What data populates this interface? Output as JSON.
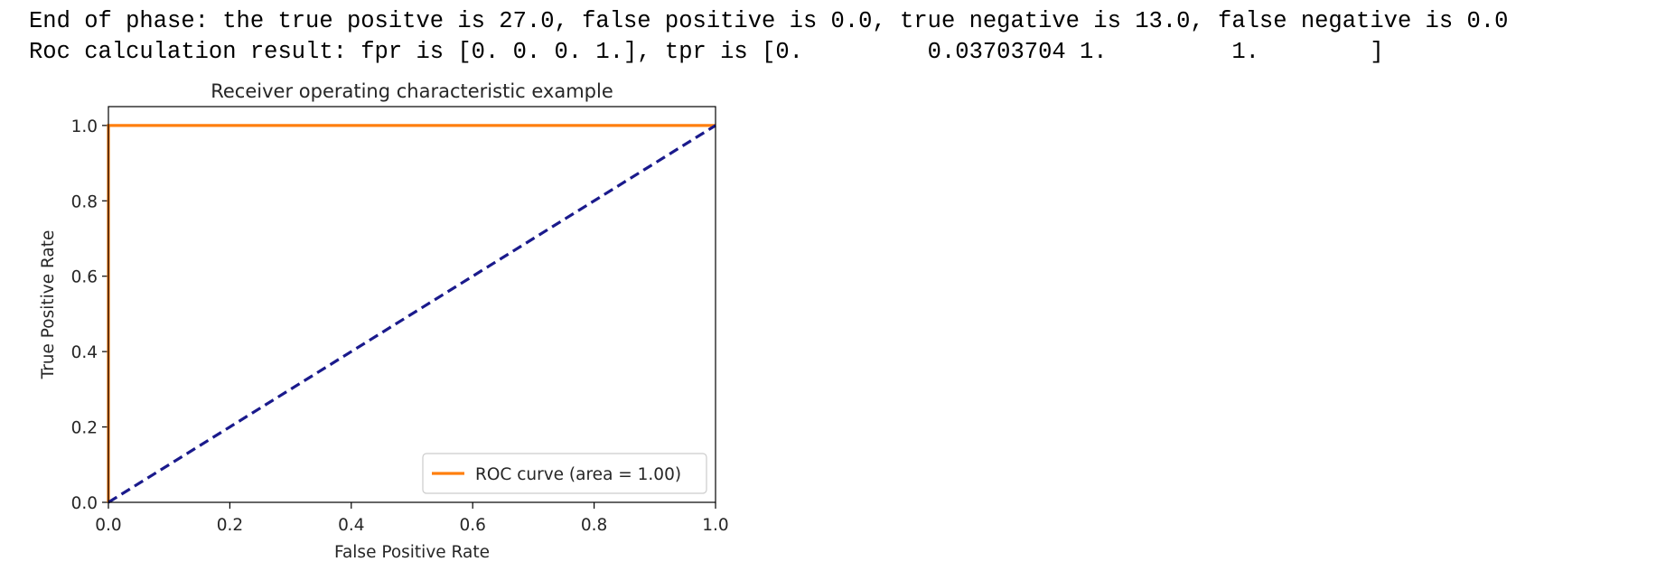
{
  "output": {
    "line1": "End of phase: the true positve is 27.0, false positive is 0.0, true negative is 13.0, false negative is 0.0",
    "line2": "Roc calculation result: fpr is [0. 0. 0. 1.], tpr is [0.         0.03703704 1.         1.        ]"
  },
  "chart_data": {
    "type": "line",
    "title": "Receiver operating characteristic example",
    "xlabel": "False Positive Rate",
    "ylabel": "True Positive Rate",
    "xlim": [
      0.0,
      1.0
    ],
    "ylim": [
      0.0,
      1.05
    ],
    "xticks": [
      0.0,
      0.2,
      0.4,
      0.6,
      0.8,
      1.0
    ],
    "yticks": [
      0.0,
      0.2,
      0.4,
      0.6,
      0.8,
      1.0
    ],
    "xtick_labels": [
      "0.0",
      "0.2",
      "0.4",
      "0.6",
      "0.8",
      "1.0"
    ],
    "ytick_labels": [
      "0.0",
      "0.2",
      "0.4",
      "0.6",
      "0.8",
      "1.0"
    ],
    "grid": false,
    "legend_position": "lower-right",
    "series": [
      {
        "name": "ROC curve (area = 1.00)",
        "x": [
          0.0,
          0.0,
          0.0,
          1.0
        ],
        "y": [
          0.0,
          0.03703704,
          1.0,
          1.0
        ],
        "color": "#ff7f0e",
        "style": "solid"
      },
      {
        "x": [
          0.0,
          1.0
        ],
        "y": [
          0.0,
          1.0
        ],
        "color": "#1a1a8c",
        "style": "dashed"
      }
    ]
  }
}
